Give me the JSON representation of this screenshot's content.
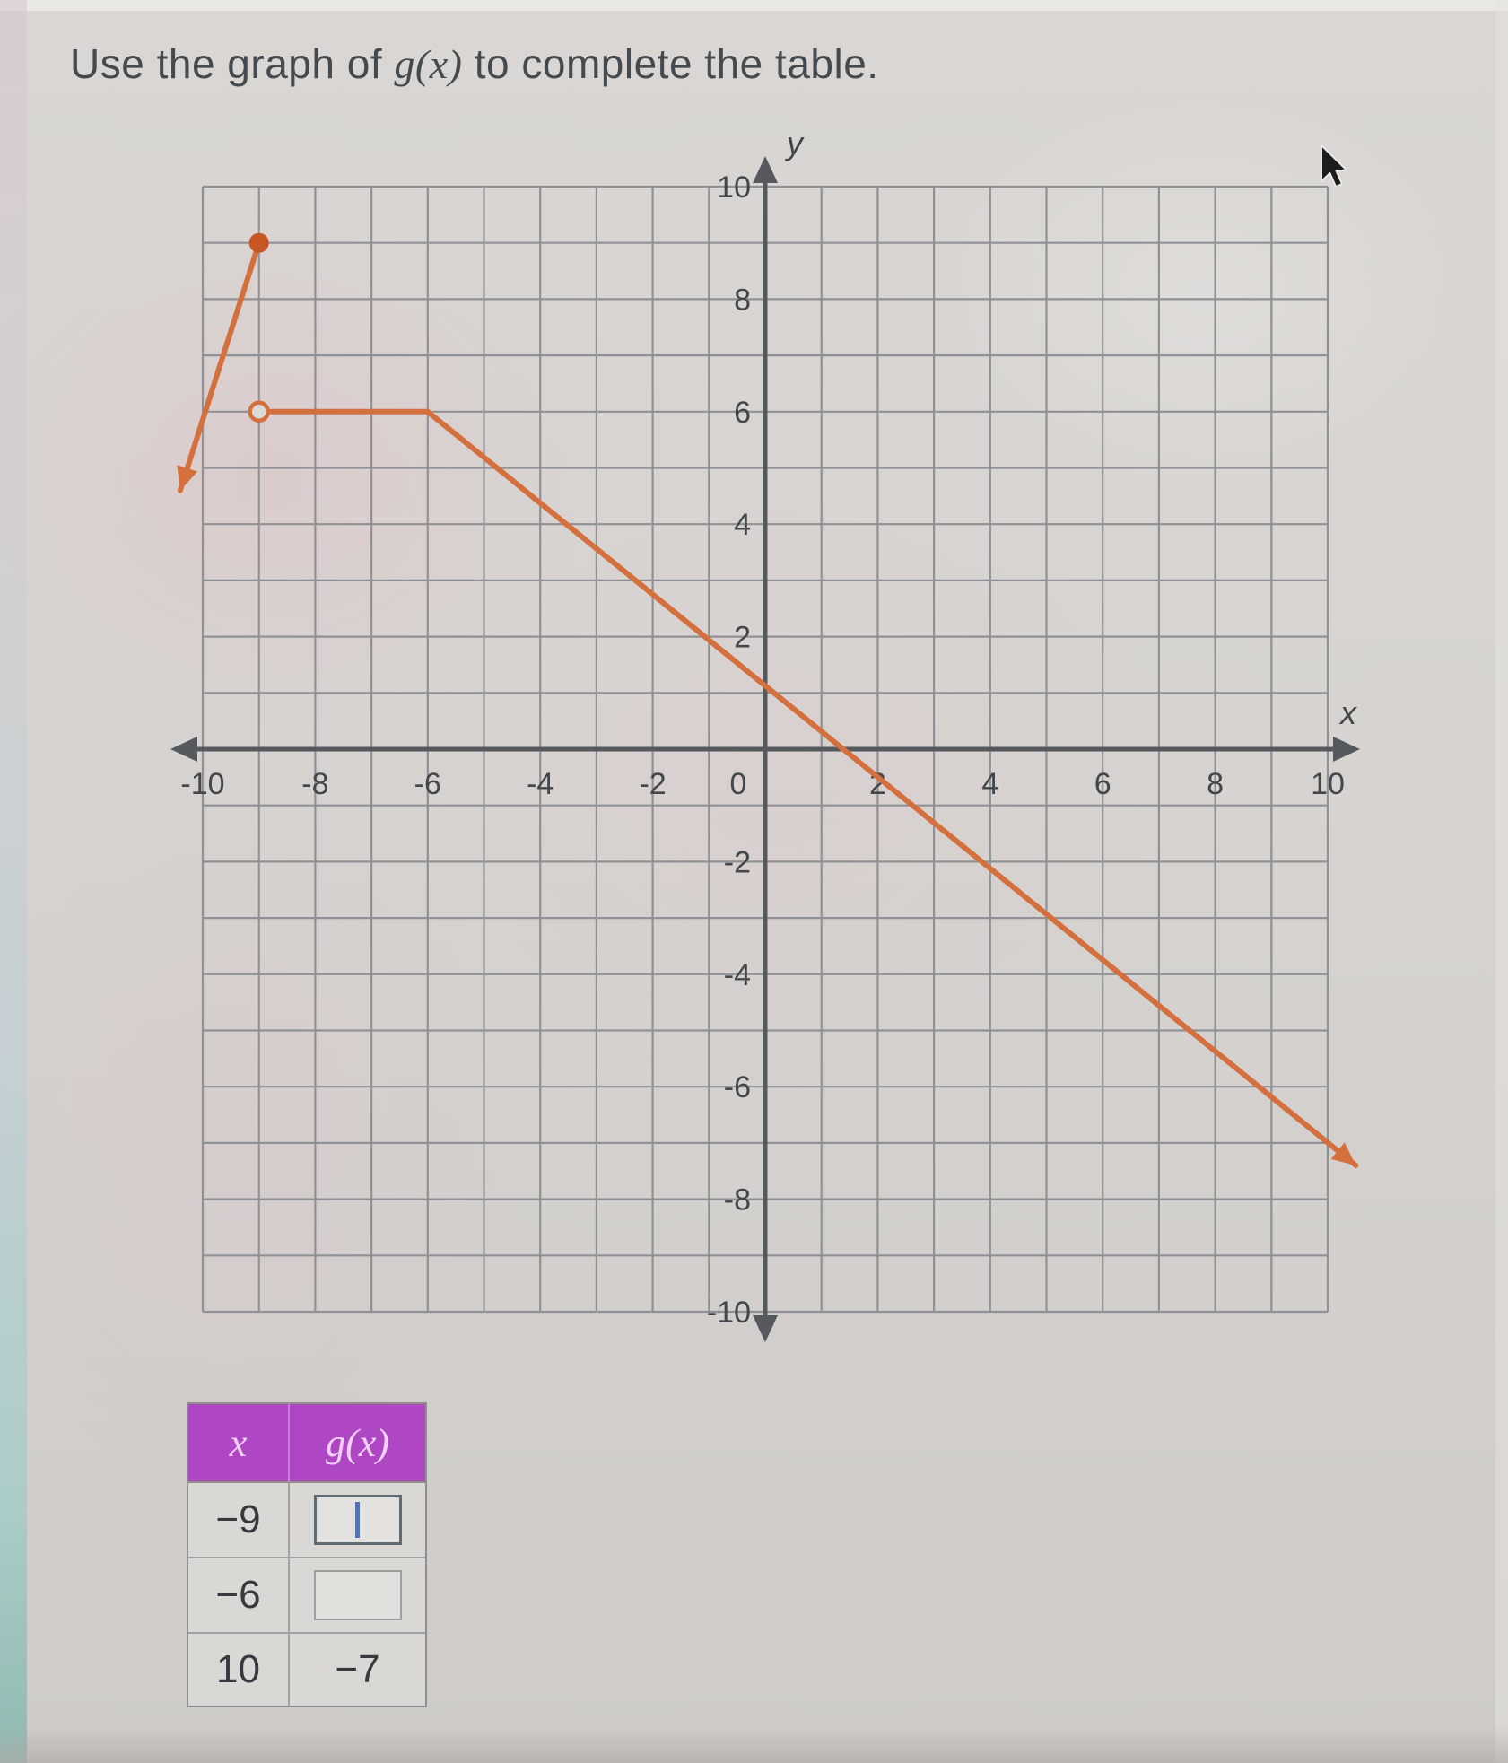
{
  "title": {
    "prefix": "Use the graph of ",
    "func": "g(x)",
    "suffix": " to complete the table."
  },
  "colors": {
    "accent_orange": "#d3703e",
    "point_fill": "#c75627",
    "open_point_fill": "#dcdad6",
    "grid": "#8f9196",
    "axis": "#55585c",
    "tick_text": "#43474b",
    "header_purple": "#af46c4",
    "header_text": "#f2d2f6",
    "caret_blue": "#5173ae",
    "page_bg": "#d5d2cf"
  },
  "chart_data": {
    "type": "line",
    "title": "",
    "xlabel": "x",
    "ylabel": "y",
    "xlim": [
      -10,
      10
    ],
    "ylim": [
      -10,
      10
    ],
    "grid": true,
    "grid_step": 1,
    "tick_step": 2,
    "x_tick_labels": [
      "-10",
      "-8",
      "-6",
      "-4",
      "-2",
      "0",
      "2",
      "4",
      "6",
      "8",
      "10"
    ],
    "y_tick_labels": [
      "10",
      "8",
      "6",
      "4",
      "2",
      "-2",
      "-4",
      "-6",
      "-8",
      "-10"
    ],
    "legend_position": "none",
    "series": [
      {
        "name": "g(x)",
        "color": "#d3703e",
        "pieces": [
          {
            "type": "ray",
            "from": [
              -9,
              9
            ],
            "to": [
              -10.4,
              4.6
            ],
            "arrow": true
          },
          {
            "type": "segment",
            "from": [
              -9,
              6
            ],
            "to": [
              -6,
              6
            ],
            "arrow": false
          },
          {
            "type": "ray",
            "from": [
              -6,
              6
            ],
            "to": [
              10.5,
              -7.4
            ],
            "arrow": true
          }
        ],
        "points": [
          {
            "x": -9,
            "y": 9,
            "style": "closed"
          },
          {
            "x": -9,
            "y": 6,
            "style": "open"
          }
        ],
        "key_values": [
          {
            "x": -9,
            "g": 9
          },
          {
            "x": -6,
            "g": 6
          },
          {
            "x": 10,
            "g": -7
          }
        ]
      }
    ]
  },
  "table": {
    "headers": [
      "x",
      "g(x)"
    ],
    "rows": [
      {
        "x": "−9",
        "g": "",
        "has_input": true,
        "focused": true
      },
      {
        "x": "−6",
        "g": "",
        "has_input": true,
        "focused": false
      },
      {
        "x": "10",
        "g": "−7",
        "has_input": false,
        "focused": false
      }
    ]
  },
  "cursor": {
    "present": true,
    "shape": "arrow-pointer"
  }
}
